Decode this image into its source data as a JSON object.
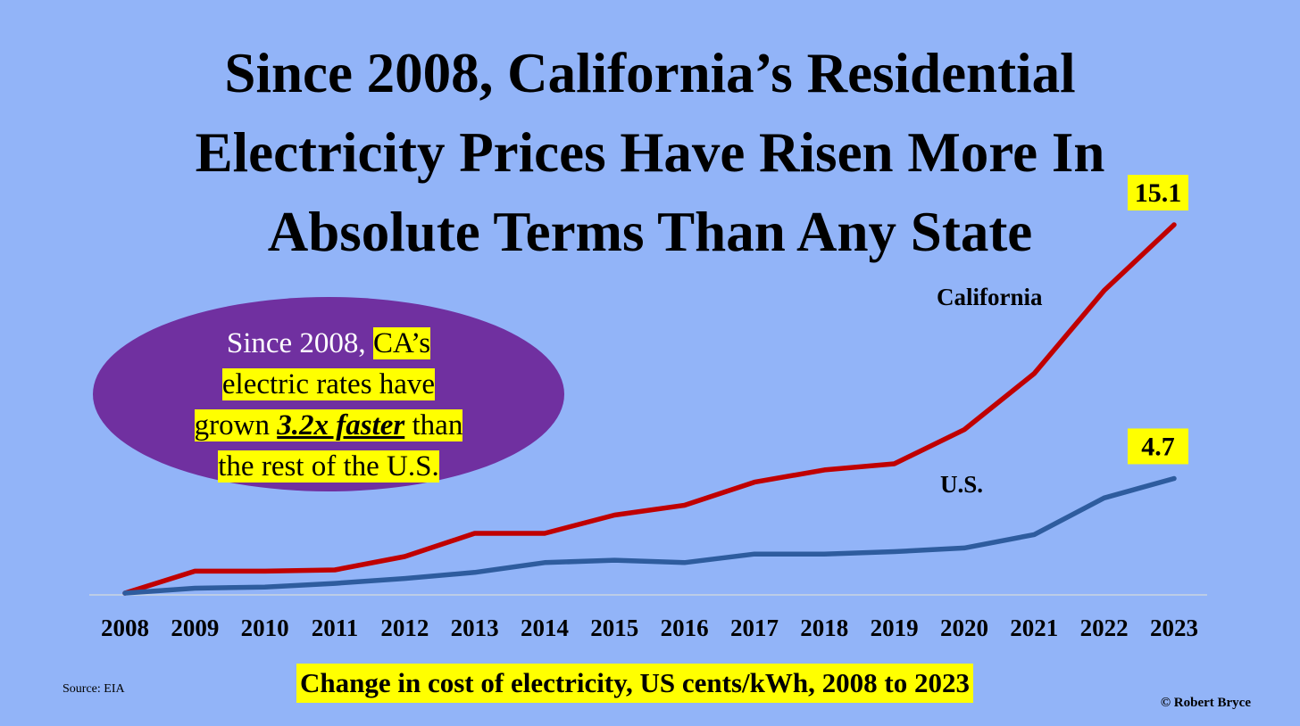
{
  "title": {
    "line1": "Since 2008, California’s Residential",
    "line2": "Electricity Prices Have Risen More In",
    "line3": "Absolute Terms Than Any State"
  },
  "callout": {
    "plain_prefix": "Since 2008, ",
    "hl_part1": "CA’s",
    "hl_part2": "electric rates have",
    "hl_part3a": "grown ",
    "emphasis": "3.2x faster",
    "hl_part3b": " than",
    "hl_part4": "the rest of the U.S."
  },
  "caption": "Change in cost of electricity, US cents/kWh, 2008 to 2023",
  "source": "Source: EIA",
  "copyright": "© Robert Bryce",
  "colors": {
    "background": "#92b4f8",
    "california": "#c00000",
    "us": "#2e5c9e",
    "highlight": "#ffff00",
    "callout": "#7030a0"
  },
  "chart_data": {
    "type": "line",
    "categories": [
      "2008",
      "2009",
      "2010",
      "2011",
      "2012",
      "2013",
      "2014",
      "2015",
      "2016",
      "2017",
      "2018",
      "2019",
      "2020",
      "2021",
      "2022",
      "2023"
    ],
    "ylim": [
      0,
      15.1
    ],
    "grid": false,
    "series": [
      {
        "name": "California",
        "color": "#c00000",
        "values": [
          0,
          0.9,
          0.9,
          0.95,
          1.5,
          2.45,
          2.45,
          3.2,
          3.6,
          4.55,
          5.05,
          5.3,
          6.7,
          9.0,
          12.4,
          15.1
        ],
        "end_label": "15.1"
      },
      {
        "name": "U.S.",
        "color": "#2e5c9e",
        "values": [
          0,
          0.2,
          0.25,
          0.4,
          0.6,
          0.85,
          1.25,
          1.35,
          1.25,
          1.6,
          1.6,
          1.7,
          1.85,
          2.4,
          3.9,
          4.7
        ],
        "end_label": "4.7"
      }
    ]
  }
}
